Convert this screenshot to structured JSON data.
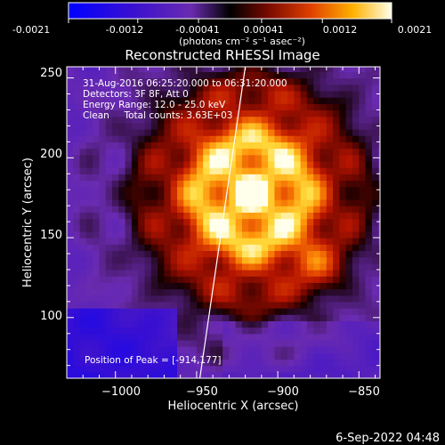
{
  "colorbar": {
    "tick_labels": [
      "-0.0021",
      "-0.0012",
      "-0.00041",
      "0.00041",
      "0.0012",
      "0.0021"
    ],
    "unit_label": "(photons cm⁻² s⁻¹ asec⁻²)",
    "range": [
      -0.0021,
      0.0021
    ]
  },
  "chart_data": {
    "type": "heatmap",
    "title": "Reconstructed RHESSI Image",
    "xlabel": "Heliocentric X (arcsec)",
    "ylabel": "Heliocentric Y (arcsec)",
    "xlim": [
      -1030,
      -837
    ],
    "ylim": [
      62,
      257
    ],
    "xticks": [
      -1000,
      -950,
      -900,
      -850
    ],
    "yticks": [
      100,
      150,
      200,
      250
    ],
    "xtick_labels": [
      "−1000",
      "−950",
      "−900",
      "−850"
    ],
    "ytick_labels": [
      "100",
      "150",
      "200",
      "250"
    ],
    "grid": false,
    "annotations": [
      "31-Aug-2016 06:25:20.000 to 06:31:20.000",
      "Detectors: 3F 8F, Att 0",
      "Energy Range: 12.0 - 25.0 keV",
      "Clean     Total counts: 3.63E+03"
    ],
    "peak_label": "Position of Peak = [-914,177]",
    "peak": [
      -914,
      177
    ],
    "limb_line": {
      "x": [
        -948,
        -920
      ],
      "y": [
        62,
        257
      ]
    },
    "source": {
      "center": [
        -916,
        178
      ],
      "sigma_x_arcsec": 42,
      "sigma_y_arcsec": 46,
      "secondary_peak": [
        -876,
        134
      ]
    }
  },
  "footer": {
    "date": "6-Sep-2022 04:48"
  }
}
